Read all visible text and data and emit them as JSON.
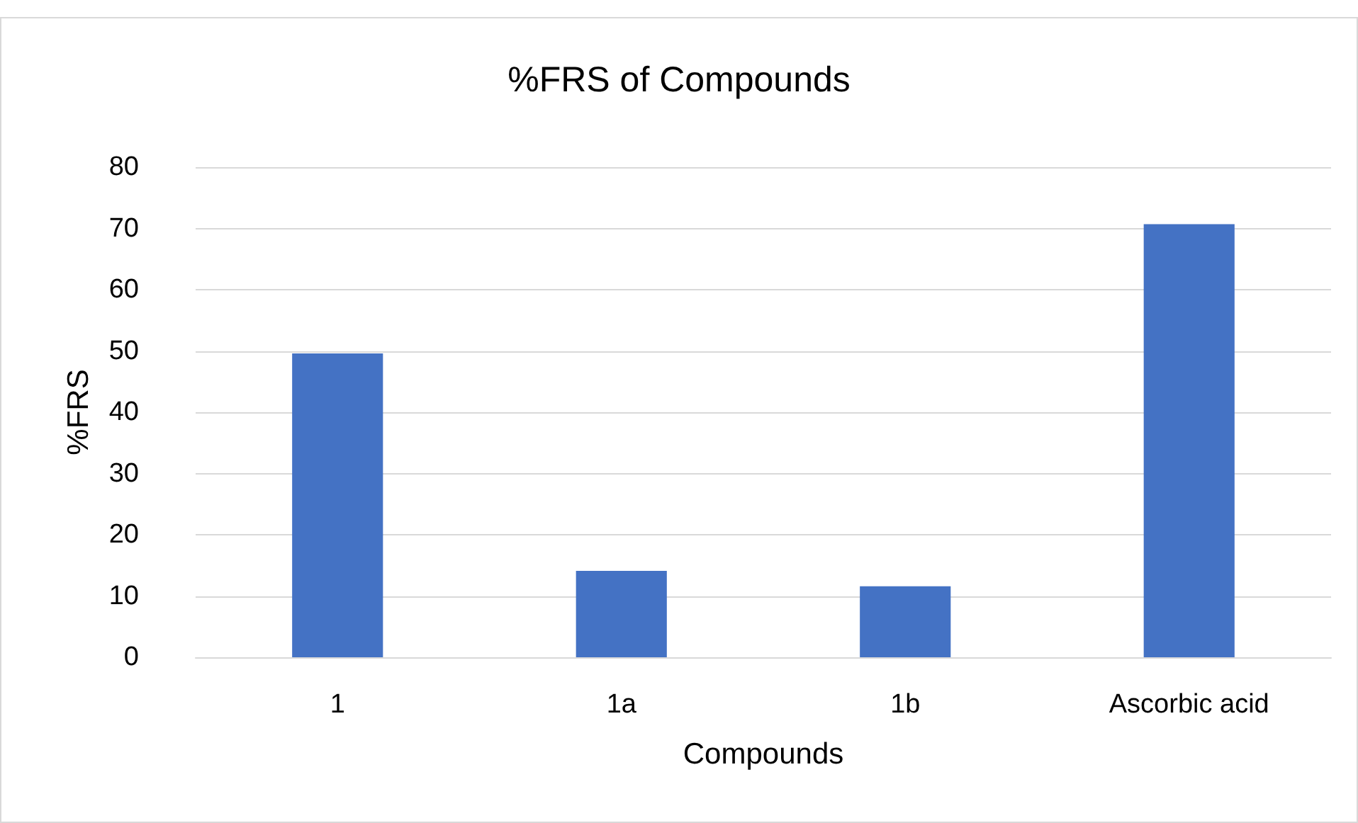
{
  "chart_data": {
    "type": "bar",
    "title": "%FRS of Compounds",
    "xlabel": "Compounds",
    "ylabel": "%FRS",
    "categories": [
      "1",
      "1a",
      "1b",
      "Ascorbic acid"
    ],
    "values": [
      49.6,
      14.1,
      11.6,
      70.7
    ],
    "color": "#4472c4",
    "ylim": [
      0,
      80
    ],
    "yticks": [
      0,
      10,
      20,
      30,
      40,
      50,
      60,
      70,
      80
    ],
    "grid": "y"
  }
}
